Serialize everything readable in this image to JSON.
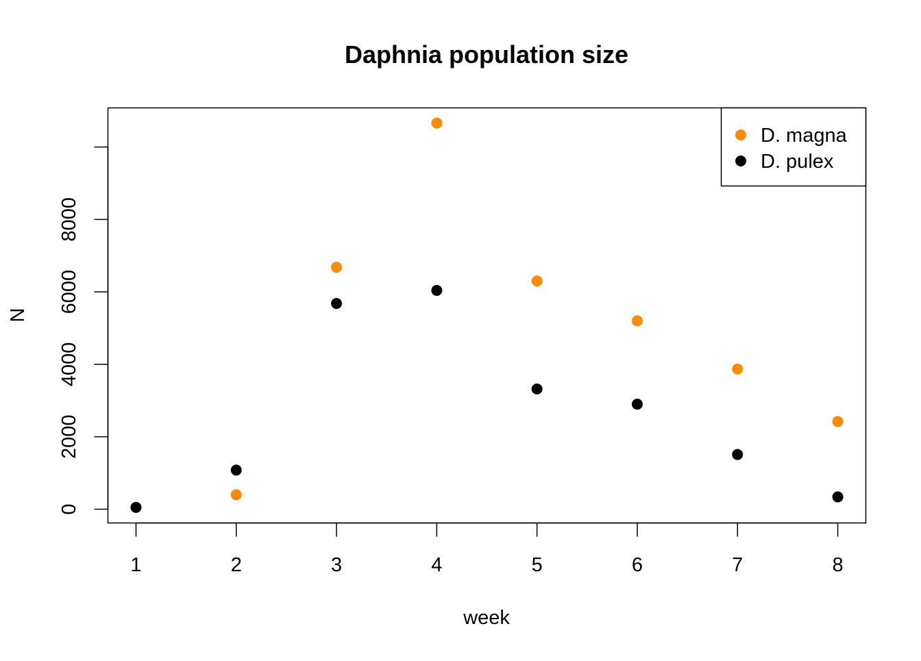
{
  "chart_data": {
    "type": "scatter",
    "title": "Daphnia population size",
    "xlabel": "week",
    "ylabel": "N",
    "x": [
      1,
      2,
      3,
      4,
      5,
      6,
      7,
      8
    ],
    "series": [
      {
        "name": "D. magna",
        "color": "#FF8C00",
        "values": [
          50,
          400,
          6680,
          10660,
          6300,
          5200,
          3870,
          2420
        ]
      },
      {
        "name": "D. pulex",
        "color": "#000000",
        "values": [
          50,
          1080,
          5680,
          6040,
          3320,
          2900,
          1510,
          340
        ]
      }
    ],
    "xticks": [
      "1",
      "2",
      "3",
      "4",
      "5",
      "6",
      "7",
      "8"
    ],
    "yticks": [
      "0",
      "2000",
      "4000",
      "6000",
      "8000"
    ],
    "xlim": [
      0.72,
      8.28
    ],
    "ylim": [
      -380,
      11080
    ],
    "grid": false,
    "legend_position": "top-right"
  }
}
